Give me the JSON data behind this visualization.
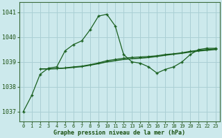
{
  "title": "Graphe pression niveau de la mer (hPa)",
  "bg_color": "#cce9ec",
  "grid_color": "#aacfd4",
  "line_color": "#1a6020",
  "xlim": [
    -0.5,
    23.5
  ],
  "ylim": [
    1036.6,
    1041.4
  ],
  "yticks": [
    1037,
    1038,
    1039,
    1040,
    1041
  ],
  "xticks": [
    0,
    1,
    2,
    3,
    4,
    5,
    6,
    7,
    8,
    9,
    10,
    11,
    12,
    13,
    14,
    15,
    16,
    17,
    18,
    19,
    20,
    21,
    22,
    23
  ],
  "line1_x": [
    0,
    1,
    2,
    3,
    4,
    5,
    6,
    7,
    8,
    9,
    10,
    11,
    12,
    13,
    14,
    15,
    16,
    17,
    18,
    19,
    20,
    21,
    22,
    23
  ],
  "line1_y": [
    1037.0,
    1037.65,
    1038.5,
    1038.75,
    1038.8,
    1039.45,
    1039.7,
    1039.85,
    1040.3,
    1040.85,
    1040.92,
    1040.45,
    1039.3,
    1039.0,
    1038.95,
    1038.8,
    1038.55,
    1038.7,
    1038.8,
    1039.0,
    1039.3,
    1039.5,
    1039.55,
    1039.55
  ],
  "line2_x": [
    2,
    3,
    4,
    5,
    6,
    7,
    8,
    9,
    10,
    11,
    12,
    13,
    14,
    15,
    16,
    17,
    18,
    19,
    20,
    21,
    22,
    23
  ],
  "line2_y": [
    1038.72,
    1038.72,
    1038.73,
    1038.75,
    1038.78,
    1038.81,
    1038.87,
    1038.93,
    1039.0,
    1039.05,
    1039.1,
    1039.13,
    1039.15,
    1039.18,
    1039.22,
    1039.27,
    1039.31,
    1039.35,
    1039.4,
    1039.44,
    1039.47,
    1039.5
  ],
  "line3_x": [
    2,
    3,
    4,
    5,
    6,
    7,
    8,
    9,
    10,
    11,
    12,
    13,
    14,
    15,
    16,
    17,
    18,
    19,
    20,
    21,
    22,
    23
  ],
  "line3_y": [
    1038.72,
    1038.72,
    1038.73,
    1038.76,
    1038.8,
    1038.83,
    1038.89,
    1038.96,
    1039.05,
    1039.1,
    1039.15,
    1039.18,
    1039.2,
    1039.22,
    1039.25,
    1039.3,
    1039.33,
    1039.37,
    1039.43,
    1039.47,
    1039.5,
    1039.53
  ]
}
